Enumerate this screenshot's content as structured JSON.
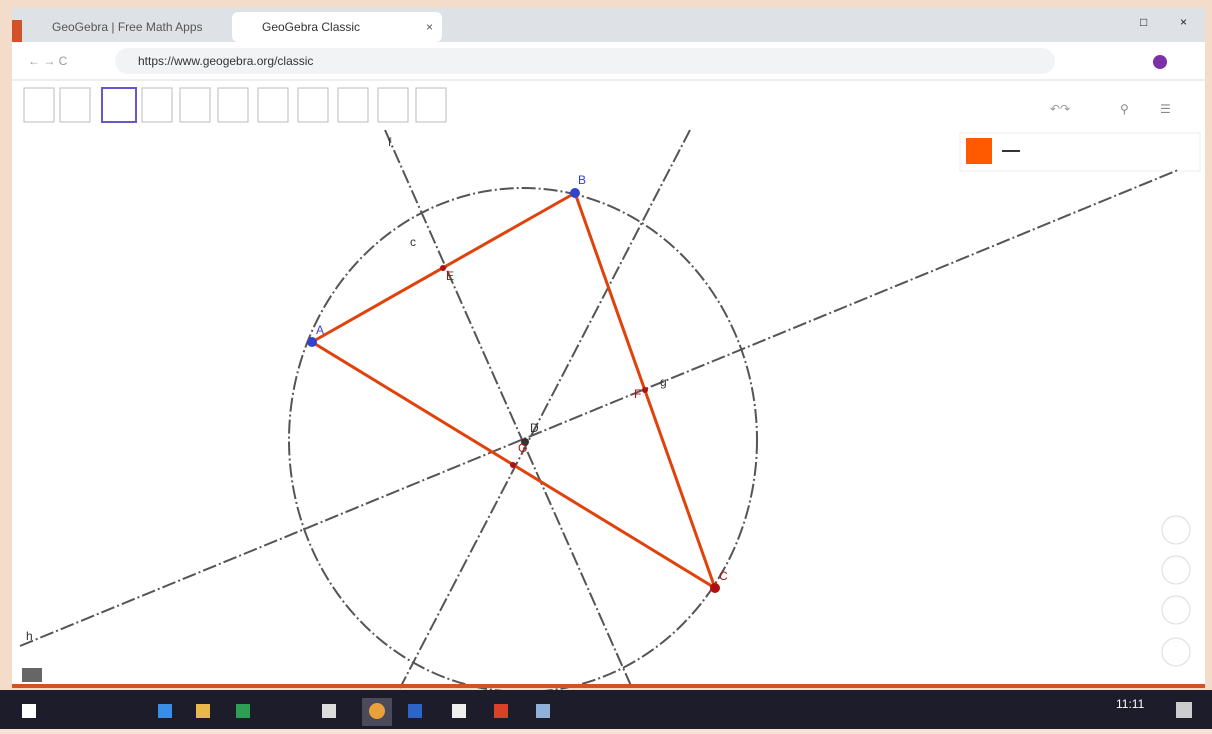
{
  "browser": {
    "tabs": [
      "GeoGebra | Free Math Apps",
      "GeoGebra Classic"
    ],
    "url": "https://www.geogebra.org/classic"
  },
  "construction": {
    "points": [
      "A",
      "B",
      "C",
      "D",
      "E",
      "F",
      "G"
    ],
    "lines": [
      "f",
      "g",
      "h"
    ],
    "circle": "c"
  },
  "taskbar": {
    "time": "11:11"
  }
}
